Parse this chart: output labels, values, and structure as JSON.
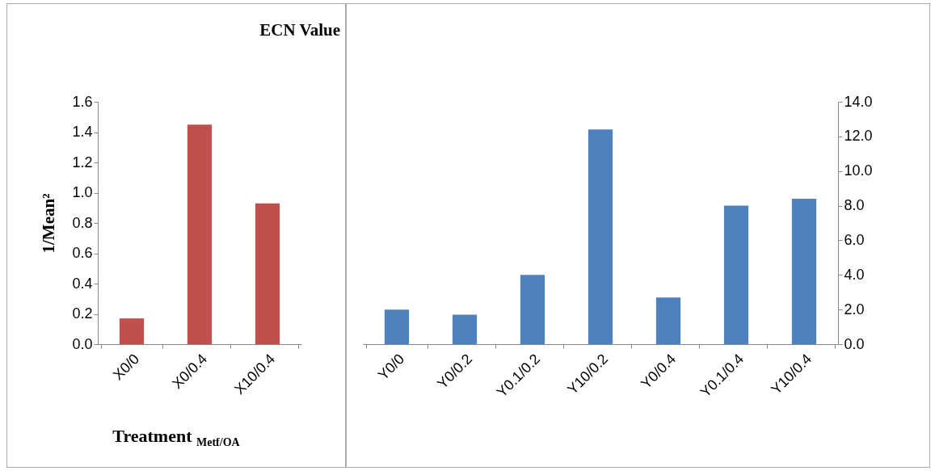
{
  "chart_data": [
    {
      "type": "bar",
      "title": "ECN Value",
      "ylabel": "1/Mean²",
      "xlabel": "Treatment $_{Metf/OA}$",
      "categories": [
        "X0/0",
        "X0/0.4",
        "X10/0.4"
      ],
      "series": [
        {
          "color": "#c0504d",
          "values": [
            0.17,
            1.45,
            0.93
          ]
        }
      ],
      "ylim": [
        0,
        1.6
      ],
      "yticks": [
        {
          "value": 0,
          "label": "0.0"
        },
        {
          "value": 0.2,
          "label": "0.2"
        },
        {
          "value": 0.4,
          "label": "0.4"
        },
        {
          "value": 0.6,
          "label": "0.6"
        },
        {
          "value": 0.8,
          "label": "0.8"
        },
        {
          "value": 1,
          "label": "1.0"
        },
        {
          "value": 1.2,
          "label": "1.2"
        },
        {
          "value": 1.4,
          "label": "1.4"
        },
        {
          "value": 1.6,
          "label": "1.6"
        }
      ]
    },
    {
      "type": "bar",
      "categories": [
        "Y0/0",
        "Y0/0.2",
        "Y0.1/0.2",
        "Y10/0.2",
        "Y0/0.4",
        "Y0.1/0.4",
        "Y10/0.4"
      ],
      "series": [
        {
          "color": "#4f81bd",
          "axis": "y2",
          "values": [
            2.0,
            1.7,
            4.0,
            12.4,
            2.7,
            8.0,
            8.4
          ]
        }
      ],
      "y2lim": [
        0,
        14
      ],
      "y2ticks": [
        {
          "value": 0,
          "label": "0.0"
        },
        {
          "value": 2,
          "label": "2.0"
        },
        {
          "value": 4,
          "label": "4.0"
        },
        {
          "value": 6,
          "label": "6.0"
        },
        {
          "value": 8,
          "label": "8.0"
        },
        {
          "value": 10,
          "label": "10.0"
        },
        {
          "value": 12,
          "label": "12.0"
        },
        {
          "value": 14,
          "label": "14.0"
        }
      ]
    }
  ]
}
